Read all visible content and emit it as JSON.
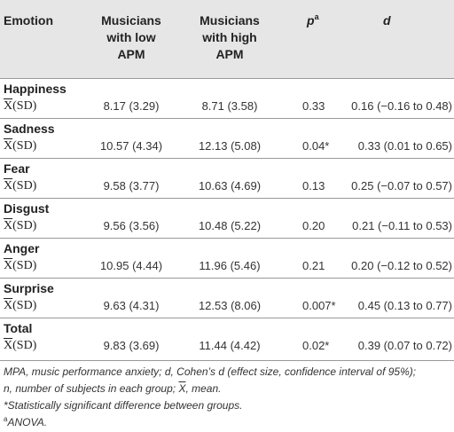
{
  "table": {
    "headers": {
      "emotion": "Emotion",
      "low_apm_line1": "Musicians",
      "low_apm_line2": "with low",
      "low_apm_line3": "APM",
      "high_apm_line1": "Musicians",
      "high_apm_line2": "with high",
      "high_apm_line3": "APM",
      "p": "p",
      "p_sup": "a",
      "d": "d"
    },
    "stat_label_x": "X",
    "stat_label_rest": "(SD)",
    "rows": [
      {
        "emotion": "Happiness",
        "low": "8.17 (3.29)",
        "high": "8.71 (3.58)",
        "p": "0.33",
        "d": "0.16 (−0.16 to 0.48)"
      },
      {
        "emotion": "Sadness",
        "low": "10.57 (4.34)",
        "high": "12.13 (5.08)",
        "p": "0.04*",
        "d": "0.33 (0.01 to 0.65)"
      },
      {
        "emotion": "Fear",
        "low": "9.58 (3.77)",
        "high": "10.63 (4.69)",
        "p": "0.13",
        "d": "0.25 (−0.07 to 0.57)"
      },
      {
        "emotion": "Disgust",
        "low": "9.56 (3.56)",
        "high": "10.48 (5.22)",
        "p": "0.20",
        "d": "0.21 (−0.11 to 0.53)"
      },
      {
        "emotion": "Anger",
        "low": "10.95 (4.44)",
        "high": "11.96 (5.46)",
        "p": "0.21",
        "d": "0.20 (−0.12 to 0.52)"
      },
      {
        "emotion": "Surprise",
        "low": "9.63 (4.31)",
        "high": "12.53 (8.06)",
        "p": "0.007*",
        "d": "0.45 (0.13 to 0.77)"
      },
      {
        "emotion": "Total",
        "low": "9.83 (3.69)",
        "high": "11.44 (4.42)",
        "p": "0.02*",
        "d": "0.39 (0.07 to 0.72)"
      }
    ]
  },
  "footnotes": {
    "line1": "MPA, music performance anxiety; d, Cohen’s d (effect size, confidence interval of 95%);",
    "line2_pre": "n, number of subjects in each group; ",
    "line2_x": "X",
    "line2_post": ", mean.",
    "line3": "*Statistically significant difference between groups.",
    "line4_sup": "a",
    "line4": "ANOVA."
  },
  "colors": {
    "header_bg": "#e6e6e6",
    "rule": "#999999",
    "text": "#222222"
  }
}
